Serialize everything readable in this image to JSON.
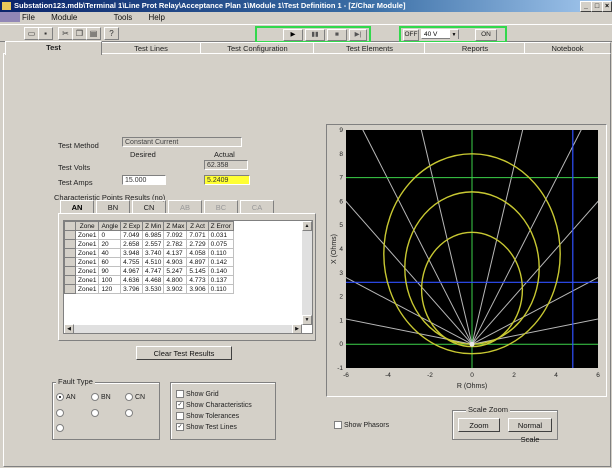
{
  "window": {
    "title": "Substation123.mdb\\Terminal 1\\Line Prot Relay\\Acceptance Plan 1\\Module 1\\Test Definition 1 - [Z/Char Module]",
    "controls": [
      "_",
      "□",
      "×"
    ]
  },
  "menu": [
    "File",
    "Module",
    "Tools",
    "Help"
  ],
  "toolbar": {
    "left_icons": [
      "new-file-icon",
      "save-icon",
      "cut-icon",
      "copy-icon",
      "paste-icon",
      "help-icon"
    ],
    "playback": [
      "▶",
      "▮▮",
      "■",
      "▶|"
    ],
    "voltage_off": "OFF",
    "voltage_value": "40 V",
    "voltage_on": "ON"
  },
  "tabs": [
    "Test",
    "Test Lines",
    "Test Configuration",
    "Test Elements",
    "Reports",
    "Notebook"
  ],
  "left": {
    "method_label": "Test Method",
    "method_value": "Constant Current",
    "desired_header": "Desired",
    "actual_header": "Actual",
    "volts_label": "Test Volts",
    "volts_actual": "62.358",
    "amps_label": "Test Amps",
    "amps_desired": "15.000",
    "amps_actual": "5.2409",
    "results_title": "Characteristic Points Results (no)",
    "subtabs": [
      "AN",
      "BN",
      "CN",
      "AB",
      "BC",
      "CA"
    ],
    "table_headers": [
      "",
      "Zone",
      "Angle",
      "Z Exp",
      "Z Min",
      "Z Max",
      "Z Act",
      "Z Error"
    ],
    "rows": [
      [
        "Zone1",
        "0",
        "7.049",
        "6.985",
        "7.092",
        "7.071",
        "0.031"
      ],
      [
        "Zone1",
        "20",
        "2.658",
        "2.557",
        "2.782",
        "2.729",
        "0.075"
      ],
      [
        "Zone1",
        "40",
        "3.948",
        "3.740",
        "4.137",
        "4.058",
        "0.110"
      ],
      [
        "Zone1",
        "60",
        "4.755",
        "4.510",
        "4.903",
        "4.897",
        "0.142"
      ],
      [
        "Zone1",
        "90",
        "4.967",
        "4.747",
        "5.247",
        "5.145",
        "0.140"
      ],
      [
        "Zone1",
        "100",
        "4.636",
        "4.468",
        "4.800",
        "4.773",
        "0.137"
      ],
      [
        "Zone1",
        "120",
        "3.796",
        "3.530",
        "3.902",
        "3.906",
        "0.110"
      ]
    ],
    "clear_button": "Clear Test Results",
    "fault_type_title": "Fault Type",
    "fault_options": [
      "AN",
      "BN",
      "CN"
    ],
    "fault_selected": "AN",
    "show_options": [
      {
        "label": "Show Grid",
        "checked": false
      },
      {
        "label": "Show Characteristics",
        "checked": true
      },
      {
        "label": "Show Tolerances",
        "checked": false
      },
      {
        "label": "Show Test Lines",
        "checked": true
      }
    ]
  },
  "right": {
    "show_phasors": "Show Phasors",
    "scale_zoom_title": "Scale Zoom",
    "zoom_button": "Zoom",
    "normal_scale_button": "Normal Scale"
  },
  "chart_data": {
    "type": "scatter",
    "title": "",
    "xlabel": "R (Ohms)",
    "ylabel": "X (Ohms)",
    "xlim": [
      -6,
      6
    ],
    "ylim": [
      -1,
      9
    ],
    "xticks": [
      -6,
      -4,
      -2,
      0,
      2,
      4,
      6
    ],
    "yticks": [
      -1,
      0,
      1,
      2,
      3,
      4,
      5,
      6,
      7,
      8,
      9
    ],
    "background": "#000000",
    "circles": [
      {
        "name": "Zone3",
        "cx": 0,
        "cy": 3.8,
        "r": 4.2,
        "color": "#c8c832"
      },
      {
        "name": "Zone2",
        "cx": 0,
        "cy": 3.2,
        "r": 3.2,
        "color": "#c8c832"
      },
      {
        "name": "Zone1",
        "cx": 0,
        "cy": 2.3,
        "r": 2.4,
        "color": "#c8c832"
      }
    ],
    "test_line_origin": [
      0,
      0
    ],
    "test_line_angles_deg": [
      10,
      25,
      45,
      60,
      75,
      90,
      105,
      120,
      135,
      155,
      170
    ],
    "green_lines": {
      "x": 0,
      "y": [
        0,
        7
      ]
    },
    "blue_lines": {
      "x": 4.8,
      "y": 2.6
    }
  }
}
